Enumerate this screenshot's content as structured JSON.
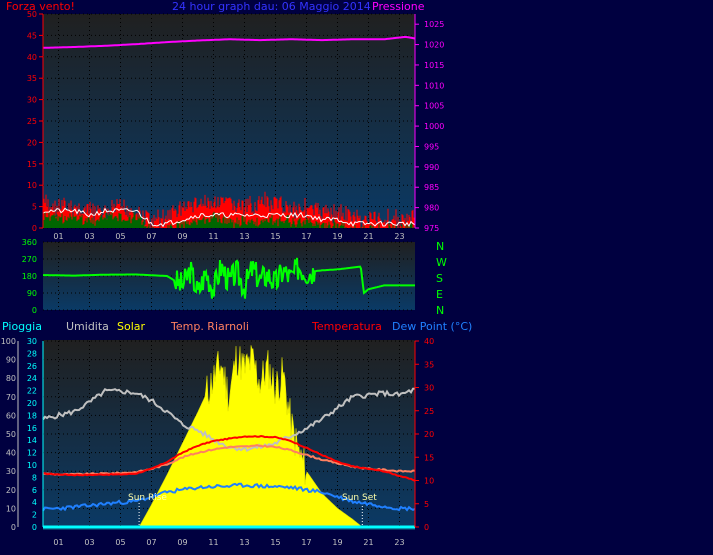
{
  "header": {
    "left_label": "Forza vento!",
    "title": "24 hour graph dau: 06 Maggio 2014",
    "right_label": "Pressione"
  },
  "mid_header": {
    "labels": [
      "Pioggia",
      "Umidita",
      "Solar",
      "Temp. Riarnoli",
      "Temperatura",
      "Dew Point (°C)"
    ]
  },
  "wind_dir_letters": [
    "N",
    "W",
    "S",
    "E",
    "N"
  ],
  "annotations": {
    "sunrise": "Sun Rise",
    "sunset": "Sun Set"
  },
  "colors": {
    "background": "#000040",
    "plot_bg_top": "#202020",
    "plot_bg_bottom": "#0a3a66",
    "wind_speed": "#ff0000",
    "wind_avg": "#ffffff",
    "wind_gust_green": "#006600",
    "pressure": "#ff00ff",
    "wind_direction": "#00ff00",
    "humidity": "#c0c0c0",
    "solar": "#ffff00",
    "temperature": "#ff0000",
    "apparent_temp": "#ff8060",
    "dew_point": "#2080ff",
    "rain": "#00ffff"
  },
  "chart_data": [
    {
      "type": "line",
      "name": "wind-pressure",
      "x_ticks": [
        "01",
        "03",
        "05",
        "07",
        "09",
        "11",
        "13",
        "15",
        "17",
        "19",
        "21",
        "23"
      ],
      "y_left_ticks": [
        0,
        5,
        10,
        15,
        20,
        25,
        30,
        35,
        40,
        45,
        50
      ],
      "y_left_lim": [
        0,
        50
      ],
      "y_right_ticks": [
        975,
        980,
        985,
        990,
        995,
        1000,
        1005,
        1010,
        1015,
        1020,
        1025
      ],
      "y_right_lim": [
        975,
        1027.5
      ],
      "series": [
        {
          "key": "pressure",
          "axis": "right",
          "x": [
            0,
            2,
            4,
            6,
            8,
            10,
            12,
            14,
            16,
            18,
            20,
            22,
            23.4,
            24
          ],
          "values": [
            1019.2,
            1019.4,
            1019.7,
            1020.1,
            1020.6,
            1021.0,
            1021.3,
            1021.1,
            1021.3,
            1021.1,
            1021.3,
            1021.3,
            1021.9,
            1021.5
          ]
        },
        {
          "key": "wind_speed",
          "axis": "left",
          "x": [
            0,
            1,
            2,
            3,
            4,
            5,
            6,
            7,
            8,
            9,
            10,
            11,
            12,
            13,
            14,
            15,
            16,
            17,
            18,
            19,
            20,
            21,
            22,
            23,
            24
          ],
          "values": [
            7,
            6,
            6,
            5,
            5,
            6,
            5,
            3,
            4,
            6,
            7,
            7,
            7,
            6,
            7,
            7,
            6,
            6,
            5,
            5,
            4,
            3,
            4,
            3,
            4
          ]
        },
        {
          "key": "wind_avg",
          "axis": "left",
          "x": [
            0,
            1,
            2,
            3,
            4,
            5,
            6,
            7,
            8,
            9,
            10,
            11,
            12,
            13,
            14,
            15,
            16,
            17,
            18,
            19,
            20,
            21,
            22,
            23,
            24
          ],
          "values": [
            4,
            4,
            4,
            3,
            4,
            4,
            4,
            1,
            1,
            2,
            3,
            3,
            3,
            3,
            3,
            3,
            3,
            3,
            2,
            2,
            1,
            1,
            1,
            1,
            1
          ]
        },
        {
          "key": "wind_gust_green",
          "axis": "left",
          "x": [
            0,
            1,
            2,
            3,
            4,
            5,
            6,
            7,
            8,
            9,
            10,
            11,
            12,
            13,
            14,
            15,
            16,
            17,
            18,
            19,
            20,
            21,
            22,
            23,
            24
          ],
          "values": [
            3,
            3,
            3,
            2,
            3,
            3,
            3,
            0,
            0,
            1,
            2,
            3,
            2,
            2,
            2,
            2,
            2,
            2,
            1,
            1,
            0,
            0,
            0,
            0,
            1
          ]
        }
      ]
    },
    {
      "type": "scatter",
      "name": "wind-direction",
      "x_ticks": [],
      "y_ticks": [
        0,
        90,
        180,
        270,
        360
      ],
      "y_lim": [
        0,
        360
      ],
      "series": [
        {
          "key": "wind_direction",
          "x": [
            0,
            2,
            4,
            6,
            8,
            9,
            9.5,
            10,
            10.5,
            11,
            11.5,
            12,
            12.5,
            13,
            13.5,
            14,
            14.5,
            15,
            15.5,
            16,
            16.5,
            17,
            18,
            19,
            20,
            20.5,
            20.7,
            21,
            22,
            23,
            24
          ],
          "values": [
            185,
            182,
            187,
            188,
            180,
            130,
            210,
            90,
            200,
            110,
            230,
            150,
            200,
            120,
            220,
            160,
            190,
            140,
            210,
            170,
            230,
            200,
            210,
            215,
            225,
            230,
            90,
            110,
            130,
            130,
            130
          ]
        }
      ]
    },
    {
      "type": "area",
      "name": "temperature-solar",
      "x_ticks": [
        "01",
        "03",
        "05",
        "07",
        "09",
        "11",
        "13",
        "15",
        "17",
        "19",
        "21",
        "23"
      ],
      "y_left_outer_ticks": [
        0,
        10,
        20,
        30,
        40,
        50,
        60,
        70,
        80,
        90,
        100
      ],
      "y_left_inner_ticks": [
        0,
        2,
        4,
        6,
        8,
        10,
        12,
        14,
        16,
        18,
        20,
        22,
        24,
        26,
        28,
        30
      ],
      "y_right_ticks": [
        0,
        5,
        10,
        15,
        20,
        25,
        30,
        35,
        40
      ],
      "y_right_lim": [
        0,
        40
      ],
      "sunrise_x": 6.2,
      "sunset_x": 20.6,
      "series": [
        {
          "key": "solar",
          "unit": "percent-of-height",
          "x": [
            6.2,
            7,
            8,
            9,
            10,
            11,
            11.5,
            12,
            12.5,
            13,
            13.5,
            14,
            14.5,
            15,
            15.5,
            16,
            16.5,
            17,
            18,
            19,
            20,
            20.6
          ],
          "values": [
            0,
            12,
            28,
            45,
            62,
            80,
            88,
            70,
            92,
            85,
            90,
            78,
            86,
            75,
            82,
            55,
            40,
            30,
            18,
            10,
            4,
            0
          ]
        },
        {
          "key": "humidity",
          "unit": "percent",
          "x": [
            0,
            1,
            2,
            3,
            4,
            5,
            6,
            7,
            8,
            9,
            10,
            11,
            12,
            13,
            14,
            15,
            16,
            17,
            18,
            19,
            20,
            21,
            22,
            23,
            24
          ],
          "values": [
            58,
            60,
            62,
            67,
            73,
            73,
            72,
            68,
            62,
            55,
            52,
            47,
            43,
            42,
            43,
            45,
            49,
            53,
            58,
            64,
            70,
            71,
            72,
            71,
            74
          ]
        },
        {
          "key": "temperature",
          "axis": "right",
          "x": [
            0,
            1,
            2,
            3,
            4,
            5,
            6,
            7,
            8,
            9,
            10,
            11,
            12,
            13,
            14,
            15,
            16,
            17,
            18,
            19,
            20,
            21,
            22,
            23,
            24
          ],
          "values": [
            11.5,
            11.3,
            11.2,
            11.2,
            11.3,
            11.3,
            11.5,
            12.5,
            14,
            16,
            17.5,
            18.5,
            19,
            19.5,
            19.5,
            19.3,
            18.5,
            17,
            15.5,
            14,
            13,
            12.5,
            12,
            11,
            10
          ]
        },
        {
          "key": "apparent_temp",
          "axis": "right",
          "x": [
            0,
            1,
            2,
            3,
            4,
            5,
            6,
            7,
            8,
            9,
            10,
            11,
            12,
            13,
            14,
            15,
            16,
            17,
            18,
            19,
            20,
            21,
            22,
            23,
            24
          ],
          "values": [
            11.5,
            11.3,
            11.3,
            11.4,
            11.5,
            11.6,
            11.8,
            12.5,
            13.5,
            15,
            16,
            16.7,
            17.2,
            17.3,
            17.5,
            17.2,
            16.5,
            15.5,
            14.5,
            13.7,
            13,
            12.5,
            12.3,
            12,
            12
          ]
        },
        {
          "key": "dew_point",
          "axis": "right",
          "x": [
            0,
            1,
            2,
            3,
            4,
            5,
            6,
            7,
            8,
            9,
            10,
            11,
            12,
            13,
            14,
            15,
            16,
            17,
            18,
            19,
            20,
            21,
            22,
            23,
            24
          ],
          "values": [
            3.8,
            4,
            4.3,
            4.6,
            5,
            5.3,
            5.5,
            6.5,
            7.5,
            8,
            8.5,
            8.7,
            8.8,
            9,
            8.8,
            8.7,
            8.5,
            8,
            7.5,
            6.5,
            5.5,
            5,
            4.5,
            4,
            4
          ]
        },
        {
          "key": "rain",
          "unit": "mm",
          "x": [
            0,
            24
          ],
          "values": [
            0,
            0
          ]
        }
      ]
    }
  ]
}
